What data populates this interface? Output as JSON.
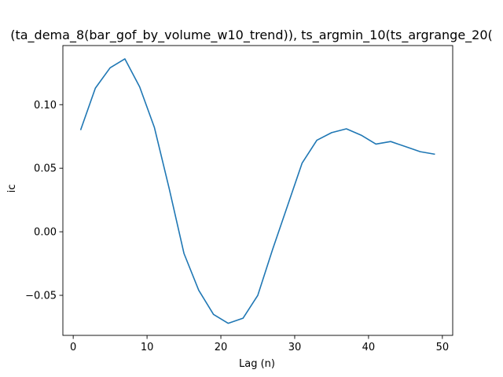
{
  "chart_data": {
    "type": "line",
    "title": "(ta_dema_8(bar_gof_by_volume_w10_trend)), ts_argmin_10(ts_argrange_20(",
    "xlabel": "Lag (n)",
    "ylabel": "ic",
    "xlim": [
      -1.4,
      51.4
    ],
    "ylim": [
      -0.0815,
      0.1465
    ],
    "x_ticks": [
      0,
      10,
      20,
      30,
      40,
      50
    ],
    "y_ticks": [
      -0.05,
      0.0,
      0.05,
      0.1
    ],
    "x_tick_labels": [
      "0",
      "10",
      "20",
      "30",
      "40",
      "50"
    ],
    "y_tick_labels": [
      "−0.05",
      "0.00",
      "0.05",
      "0.10"
    ],
    "grid": false,
    "series": [
      {
        "color": "#1f77b4",
        "x": [
          1,
          3,
          5,
          7,
          9,
          11,
          13,
          15,
          17,
          19,
          21,
          23,
          25,
          27,
          29,
          31,
          33,
          35,
          37,
          39,
          41,
          43,
          45,
          47,
          49
        ],
        "y": [
          0.08,
          0.113,
          0.129,
          0.136,
          0.114,
          0.082,
          0.034,
          -0.017,
          -0.046,
          -0.065,
          -0.072,
          -0.068,
          -0.05,
          -0.014,
          0.02,
          0.054,
          0.072,
          0.078,
          0.081,
          0.076,
          0.069,
          0.071,
          0.067,
          0.063,
          0.061
        ]
      }
    ]
  }
}
